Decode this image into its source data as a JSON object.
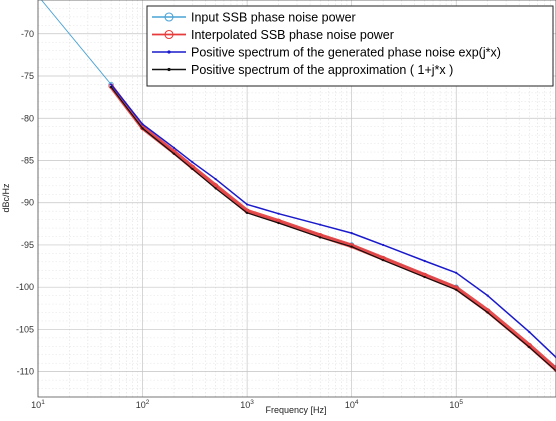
{
  "chart_data": {
    "type": "line",
    "xlabel": "Frequency [Hz]",
    "ylabel": "dBc/Hz",
    "xscale": "log",
    "xlim": [
      10,
      900000
    ],
    "ylim": [
      -113,
      -66
    ],
    "grid": true,
    "legend_position": "top-right",
    "xticks": [
      {
        "value": 10,
        "base": "10",
        "exp": "1"
      },
      {
        "value": 100,
        "base": "10",
        "exp": "2"
      },
      {
        "value": 1000,
        "base": "10",
        "exp": "3"
      },
      {
        "value": 10000,
        "base": "10",
        "exp": "4"
      },
      {
        "value": 100000,
        "base": "10",
        "exp": "5"
      }
    ],
    "yticks": [
      -70,
      -75,
      -80,
      -85,
      -90,
      -95,
      -100,
      -105,
      -110
    ],
    "series": [
      {
        "name": "Input SSB phase noise power",
        "color": "#4aa3d6",
        "marker": "circle",
        "x": [
          10,
          50,
          100,
          1000,
          10000,
          100000,
          900000
        ],
        "y": [
          -65.5,
          -76,
          -81,
          -91,
          -95,
          -100,
          -109.5
        ]
      },
      {
        "name": "Interpolated SSB phase noise power",
        "color": "#e83a3a",
        "marker": "circle",
        "x": [
          50,
          100,
          200,
          300,
          500,
          1000,
          2000,
          5000,
          10000,
          20000,
          50000,
          100000,
          200000,
          500000,
          900000
        ],
        "y": [
          -76.2,
          -81.1,
          -84.0,
          -85.8,
          -88.0,
          -91.0,
          -92.2,
          -93.9,
          -95.1,
          -96.6,
          -98.6,
          -100.1,
          -102.8,
          -106.9,
          -109.7
        ]
      },
      {
        "name": "Positive spectrum of the generated phase noise exp(j*x)",
        "color": "#1a1acc",
        "marker": "dot",
        "x": [
          50,
          100,
          200,
          300,
          500,
          1000,
          2000,
          5000,
          10000,
          20000,
          50000,
          100000,
          200000,
          500000,
          900000
        ],
        "y": [
          -76.0,
          -80.7,
          -83.5,
          -85.2,
          -87.2,
          -90.2,
          -91.3,
          -92.6,
          -93.6,
          -95.0,
          -96.9,
          -98.3,
          -101.0,
          -105.3,
          -108.3
        ]
      },
      {
        "name": "Positive spectrum of the approximation ( 1+j*x )",
        "color": "#111111",
        "marker": "dot",
        "x": [
          50,
          100,
          200,
          300,
          500,
          1000,
          2000,
          5000,
          10000,
          20000,
          50000,
          100000,
          200000,
          500000,
          900000
        ],
        "y": [
          -76.3,
          -81.2,
          -84.2,
          -86.0,
          -88.3,
          -91.2,
          -92.4,
          -94.1,
          -95.2,
          -96.8,
          -98.8,
          -100.3,
          -103.0,
          -107.1,
          -109.9
        ]
      }
    ]
  }
}
